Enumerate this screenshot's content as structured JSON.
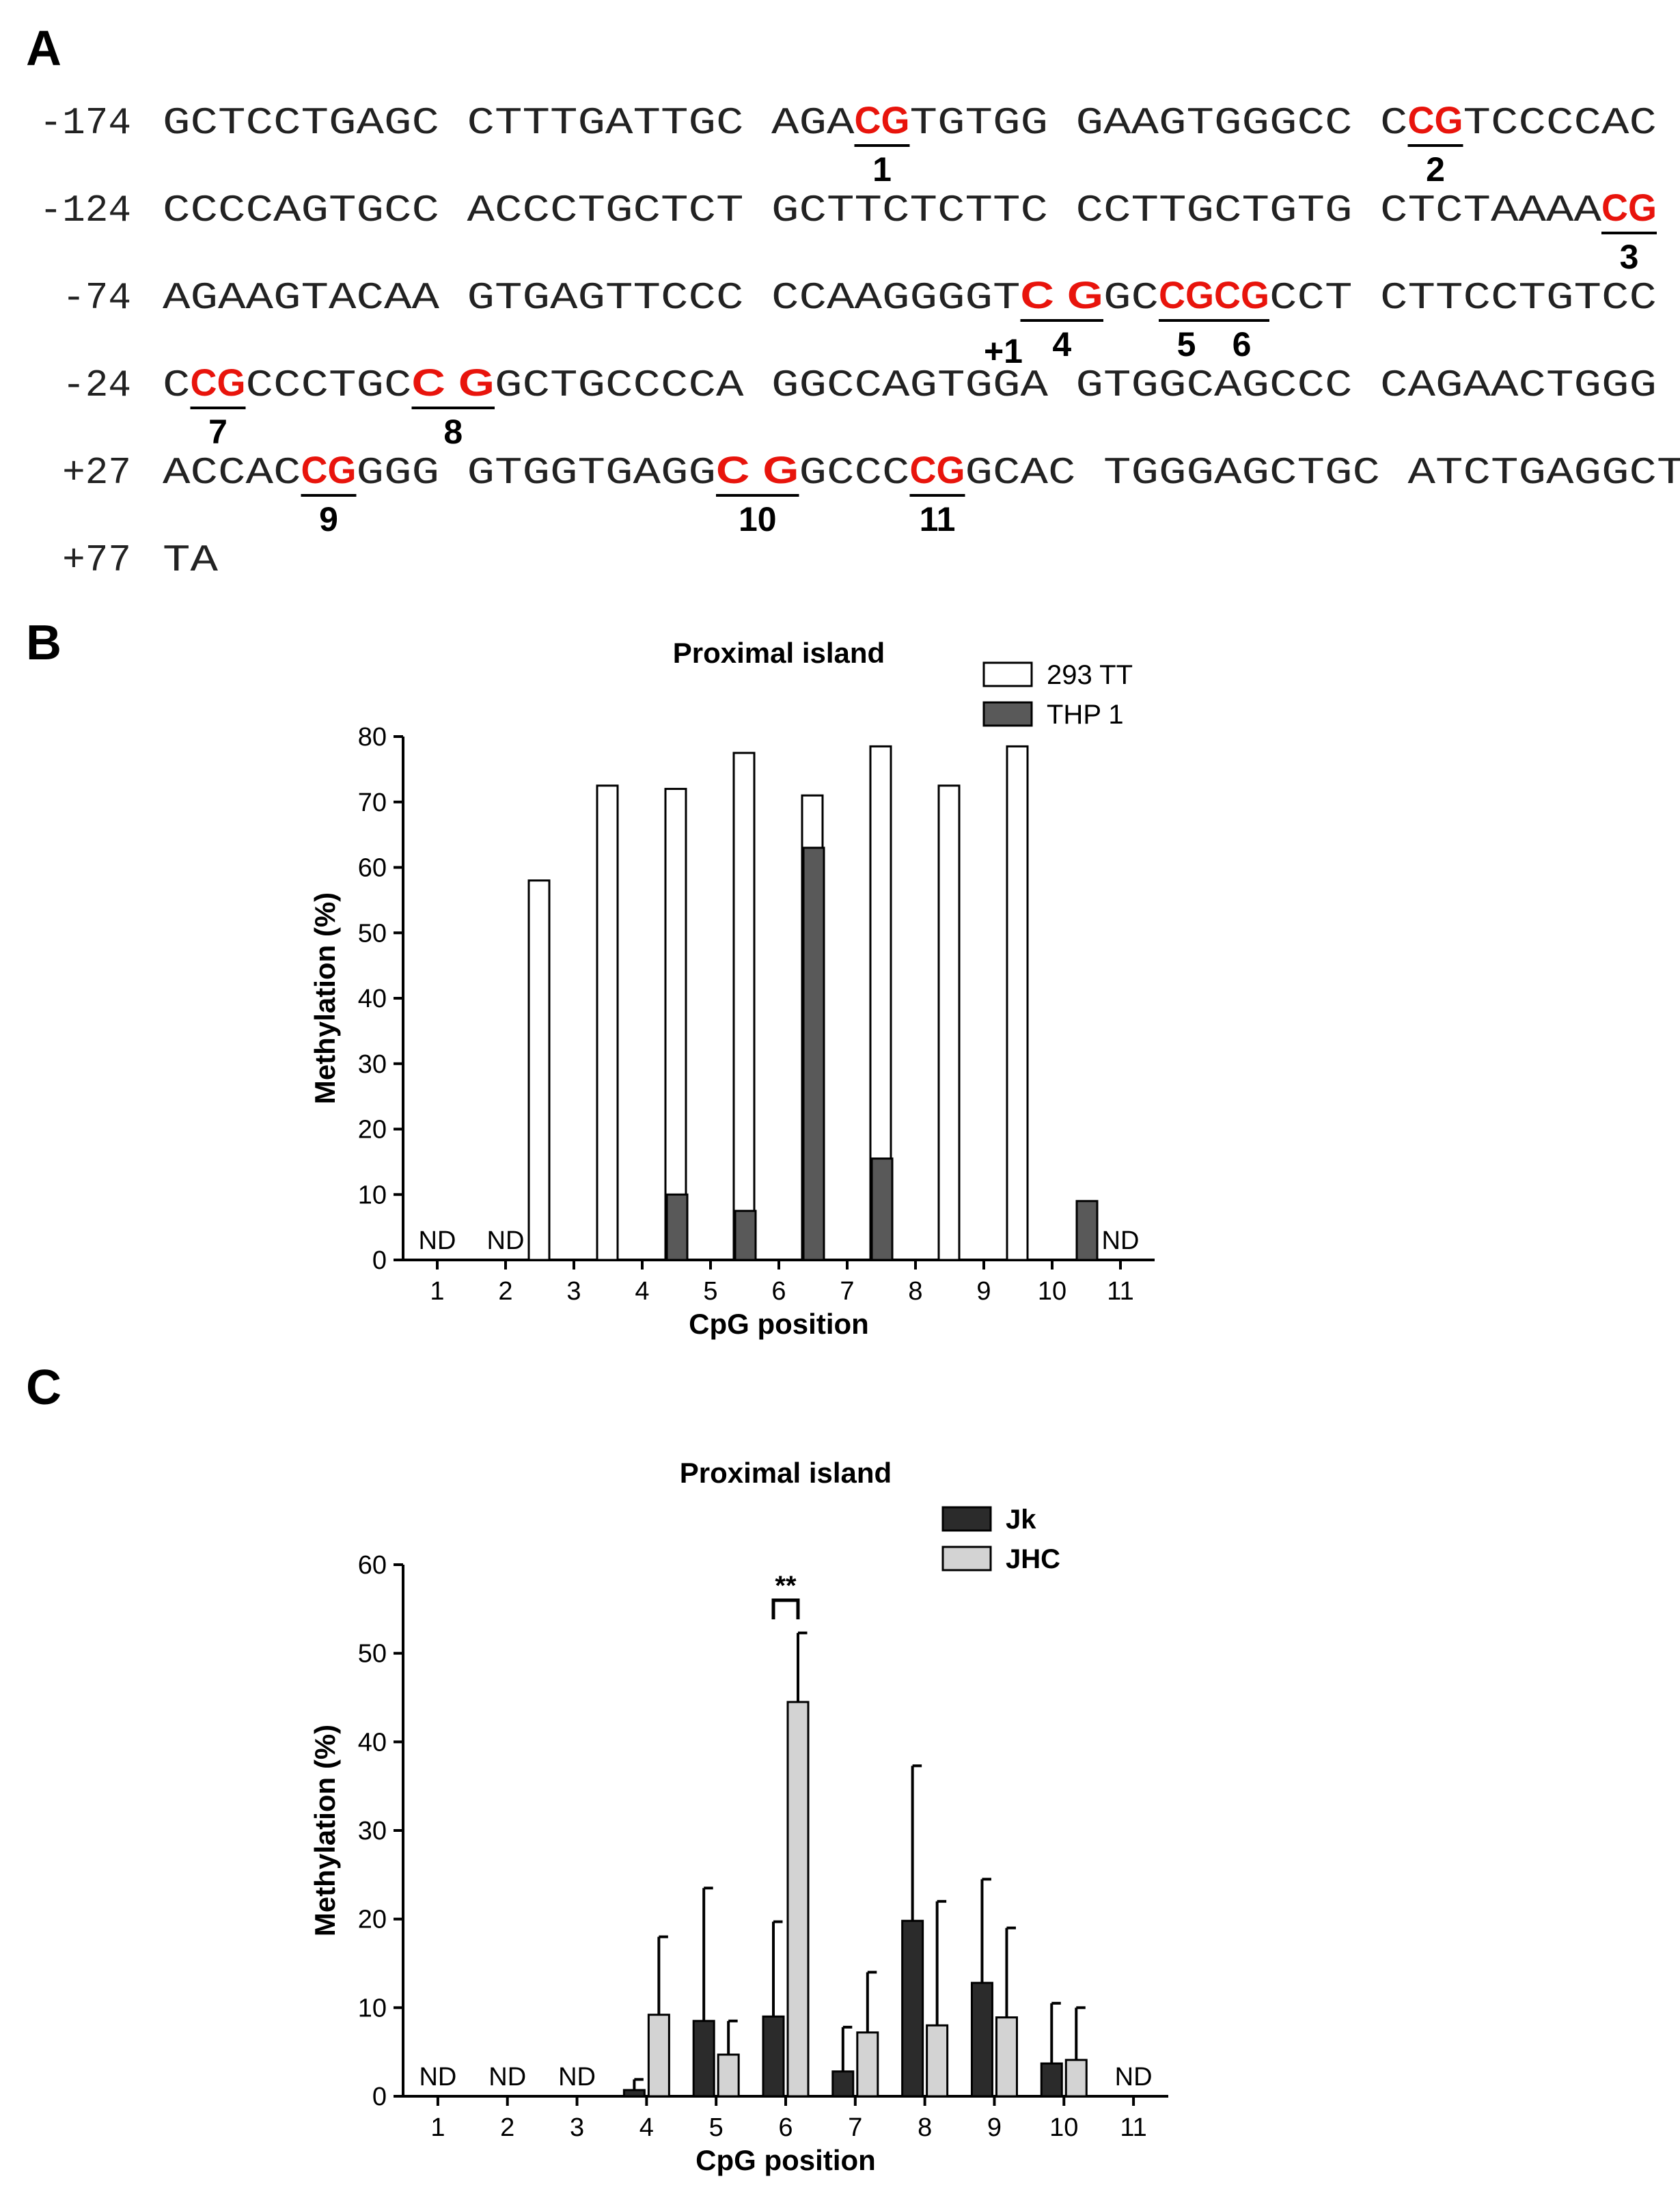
{
  "panels": {
    "a": "A",
    "b": "B",
    "c": "C"
  },
  "sequence": {
    "lines": [
      {
        "pos": "-174",
        "segments": [
          {
            "t": "GCTCCTGAGC CTTTGATTGC AGA"
          },
          {
            "t": "CG",
            "cg": true,
            "num": "1"
          },
          {
            "t": "TGTGG GAAGTGGGCC C"
          },
          {
            "t": "CG",
            "cg": true,
            "num": "2"
          },
          {
            "t": "TCCCCAC"
          }
        ]
      },
      {
        "pos": "-124",
        "segments": [
          {
            "t": "CCCCAGTGCC ACCCTGCTCT GCTTCTCTTC CCTTGCTGTG CTCTAAAA"
          },
          {
            "t": "CG",
            "cg": true,
            "num": "3"
          }
        ]
      },
      {
        "pos": "-74",
        "segments": [
          {
            "t": "AGAAGTACAA GTGAGTTCCC CCAAGGGGT"
          },
          {
            "t": "C G",
            "cg": true,
            "num": "4",
            "plus1": "+1"
          },
          {
            "t": "GC"
          },
          {
            "t": "CG",
            "cg": true,
            "num": "5"
          },
          {
            "t": "CG",
            "cg": true,
            "num": "6"
          },
          {
            "t": "CCT CTTCCTGTCC"
          }
        ]
      },
      {
        "pos": "-24",
        "segments": [
          {
            "t": "C"
          },
          {
            "t": "CG",
            "cg": true,
            "num": "7"
          },
          {
            "t": "CCCTGC"
          },
          {
            "t": "C G",
            "cg": true,
            "num": "8"
          },
          {
            "t": "GCTGCCCCA GGCCAGTGGA GTGGCAGCCC CAGAACTGGG"
          }
        ]
      },
      {
        "pos": "+27",
        "segments": [
          {
            "t": "ACCAC"
          },
          {
            "t": "CG",
            "cg": true,
            "num": "9"
          },
          {
            "t": "GGG GTGGTGAGG"
          },
          {
            "t": "C G",
            "cg": true,
            "num": "10"
          },
          {
            "t": "GCCC"
          },
          {
            "t": "CG",
            "cg": true,
            "num": "11"
          },
          {
            "t": "GCAC TGGGAGCTGC ATCTGAGGCT"
          }
        ]
      },
      {
        "pos": "+77",
        "segments": [
          {
            "t": "TA"
          }
        ]
      }
    ]
  },
  "chart_data": [
    {
      "type": "bar",
      "title": "Proximal island",
      "xlabel": "CpG position",
      "ylabel": "Methylation (%)",
      "ylim": [
        0,
        80
      ],
      "yticks": [
        0,
        10,
        20,
        30,
        40,
        50,
        60,
        70,
        80
      ],
      "categories": [
        "1",
        "2",
        "3",
        "4",
        "5",
        "6",
        "7",
        "8",
        "9",
        "10",
        "11"
      ],
      "series": [
        {
          "name": "293 TT",
          "color": "#ffffff",
          "values": [
            null,
            null,
            58,
            72.5,
            72,
            77.5,
            71,
            78.5,
            72.5,
            78.5,
            null
          ]
        },
        {
          "name": "THP 1",
          "color": "#595959",
          "values": [
            null,
            null,
            0,
            10,
            7.5,
            63,
            15.5,
            0,
            0,
            9,
            null
          ]
        }
      ],
      "not_determined": [
        {
          "category": "1",
          "label": "ND"
        },
        {
          "category": "2",
          "label": "ND"
        },
        {
          "category": "11",
          "label": "ND"
        }
      ],
      "legend": "top-right"
    },
    {
      "type": "bar",
      "title": "Proximal island",
      "xlabel": "CpG position",
      "ylabel": "Methylation (%)",
      "ylim": [
        0,
        60
      ],
      "yticks": [
        0,
        10,
        20,
        30,
        40,
        50,
        60
      ],
      "categories": [
        "1",
        "2",
        "3",
        "4",
        "5",
        "6",
        "7",
        "8",
        "9",
        "10",
        "11"
      ],
      "series": [
        {
          "name": "Jk",
          "color": "#2b2b2b",
          "values": [
            null,
            null,
            null,
            0.7,
            8.5,
            9,
            2.8,
            19.8,
            12.8,
            3.7,
            null
          ],
          "errors": [
            null,
            null,
            null,
            1.2,
            15,
            10.7,
            5,
            17.5,
            11.7,
            6.8,
            null
          ]
        },
        {
          "name": "JHC",
          "color": "#d3d3d3",
          "values": [
            null,
            null,
            null,
            9.2,
            4.7,
            44.5,
            7.2,
            8,
            8.9,
            4.1,
            null
          ],
          "errors": [
            null,
            null,
            null,
            8.8,
            3.8,
            7.8,
            6.8,
            14,
            10.1,
            5.9,
            null
          ]
        }
      ],
      "not_determined": [
        {
          "category": "1",
          "label": "ND"
        },
        {
          "category": "2",
          "label": "ND"
        },
        {
          "category": "3",
          "label": "ND"
        },
        {
          "category": "11",
          "label": "ND"
        }
      ],
      "significance": [
        {
          "category": "6",
          "label": "**"
        }
      ],
      "legend": "top-right"
    }
  ]
}
